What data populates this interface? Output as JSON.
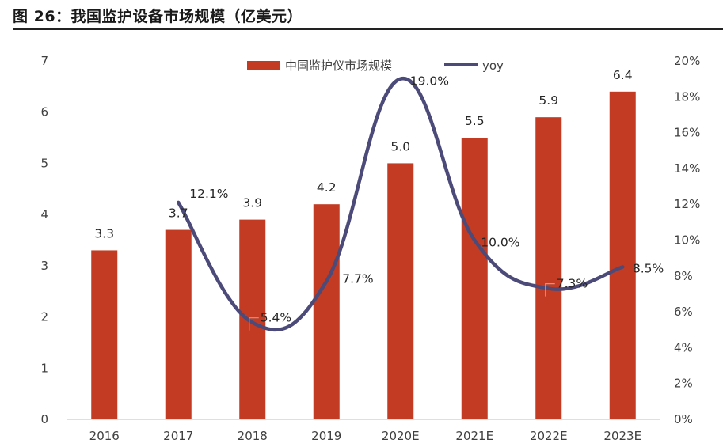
{
  "figure": {
    "title": "图 26：我国监护设备市场规模（亿美元）"
  },
  "chart_data": {
    "type": "bar",
    "categories": [
      "2016",
      "2017",
      "2018",
      "2019",
      "2020E",
      "2021E",
      "2022E",
      "2023E"
    ],
    "series": [
      {
        "name": "中国监护仪市场规模",
        "type": "bar",
        "axis": "left",
        "color": "#C23B22",
        "values": [
          3.3,
          3.7,
          3.9,
          4.2,
          5.0,
          5.5,
          5.9,
          6.4
        ],
        "labels": [
          "3.3",
          "3.7",
          "3.9",
          "4.2",
          "5.0",
          "5.5",
          "5.9",
          "6.4"
        ]
      },
      {
        "name": "yoy",
        "type": "line",
        "axis": "right",
        "color": "#4B4A78",
        "values": [
          null,
          12.1,
          5.4,
          7.7,
          19.0,
          10.0,
          7.3,
          8.5
        ],
        "labels": [
          "",
          "12.1%",
          "5.4%",
          "7.7%",
          "19.0%",
          "10.0%",
          "7.3%",
          "8.5%"
        ]
      }
    ],
    "y_left": {
      "min": 0,
      "max": 7,
      "ticks": [
        "0",
        "1",
        "2",
        "3",
        "4",
        "5",
        "6",
        "7"
      ]
    },
    "y_right": {
      "min": 0,
      "max": 20,
      "ticks": [
        "0%",
        "2%",
        "4%",
        "6%",
        "8%",
        "10%",
        "12%",
        "14%",
        "16%",
        "18%",
        "20%"
      ]
    },
    "grid": false,
    "legend": "top-center"
  }
}
